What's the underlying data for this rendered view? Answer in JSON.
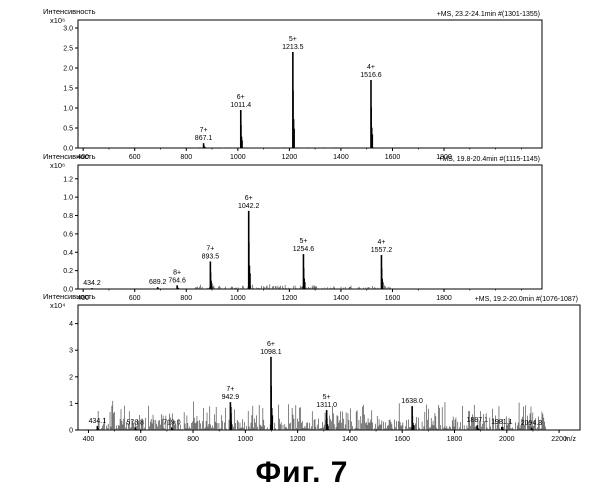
{
  "figure_caption": "Фиг.  7",
  "chart_data": [
    {
      "type": "line",
      "ylabel": "Интенсивность",
      "y_exponent_label": "x10⁶",
      "header": "+MS, 23.2-24.1min #(1301-1355)",
      "xlim": [
        380,
        2180
      ],
      "ylim": [
        0,
        3.2
      ],
      "xticks": [
        400,
        600,
        800,
        1000,
        1200,
        1400,
        1600,
        1800
      ],
      "yticks": [
        "0.0",
        "0.5",
        "1.0",
        "1.5",
        "2.0",
        "2.5",
        "3.0"
      ],
      "ytick_values": [
        0,
        0.5,
        1.0,
        1.5,
        2.0,
        2.5,
        3.0
      ],
      "peaks": [
        {
          "charge": "7+",
          "mz": "867.1",
          "x": 867.1,
          "y": 0.12
        },
        {
          "charge": "6+",
          "mz": "1011.4",
          "x": 1011.4,
          "y": 0.95
        },
        {
          "charge": "5+",
          "mz": "1213.5",
          "x": 1213.5,
          "y": 2.4
        },
        {
          "charge": "4+",
          "mz": "1516.6",
          "x": 1516.6,
          "y": 1.7
        }
      ]
    },
    {
      "type": "line",
      "ylabel": "Интенсивность",
      "y_exponent_label": "x10⁶",
      "header": "+MS, 19.8-20.4min #(1115-1145)",
      "xlim": [
        380,
        2180
      ],
      "ylim": [
        0,
        1.35
      ],
      "xticks": [
        400,
        600,
        800,
        1000,
        1200,
        1400,
        1600,
        1800
      ],
      "yticks": [
        "0.0",
        "0.2",
        "0.4",
        "0.6",
        "0.8",
        "1.0",
        "1.2"
      ],
      "ytick_values": [
        0,
        0.2,
        0.4,
        0.6,
        0.8,
        1.0,
        1.2
      ],
      "peaks": [
        {
          "charge": "",
          "mz": "434.2",
          "x": 434.2,
          "y": 0.01
        },
        {
          "charge": "",
          "mz": "689.2",
          "x": 689.2,
          "y": 0.02
        },
        {
          "charge": "8+",
          "mz": "764.6",
          "x": 764.6,
          "y": 0.04
        },
        {
          "charge": "7+",
          "mz": "893.5",
          "x": 893.5,
          "y": 0.3
        },
        {
          "charge": "6+",
          "mz": "1042.2",
          "x": 1042.2,
          "y": 0.85
        },
        {
          "charge": "5+",
          "mz": "1254.6",
          "x": 1254.6,
          "y": 0.38
        },
        {
          "charge": "4+",
          "mz": "1557.2",
          "x": 1557.2,
          "y": 0.37
        }
      ]
    },
    {
      "type": "line",
      "ylabel": "Интенсивность",
      "y_exponent_label": "x10⁴",
      "header": "+MS, 19.2-20.0min #(1076-1087)",
      "xlim": [
        360,
        2280
      ],
      "ylim": [
        0,
        4.7
      ],
      "xticks": [
        400,
        600,
        800,
        1000,
        1200,
        1400,
        1600,
        1800,
        2000,
        2200
      ],
      "yticks": [
        "0",
        "1",
        "2",
        "3",
        "4"
      ],
      "ytick_values": [
        0,
        1,
        2,
        3,
        4
      ],
      "xlabel": "m/z",
      "peaks": [
        {
          "charge": "",
          "mz": "434.1",
          "x": 434.1,
          "y": 0.15
        },
        {
          "charge": "",
          "mz": "578.8",
          "x": 578.8,
          "y": 0.1
        },
        {
          "charge": "",
          "mz": "719.0",
          "x": 719.0,
          "y": 0.1
        },
        {
          "charge": "7+",
          "mz": "942.9",
          "x": 942.9,
          "y": 1.05
        },
        {
          "charge": "6+",
          "mz": "1098.1",
          "x": 1098.1,
          "y": 2.75
        },
        {
          "charge": "5+",
          "mz": "1311.0",
          "x": 1311.0,
          "y": 0.75
        },
        {
          "charge": "",
          "mz": "1638.0",
          "x": 1638.0,
          "y": 0.9
        },
        {
          "charge": "",
          "mz": "1887.1",
          "x": 1887.1,
          "y": 0.18
        },
        {
          "charge": "",
          "mz": "1981.1",
          "x": 1981.1,
          "y": 0.12
        },
        {
          "charge": "",
          "mz": "2094.3",
          "x": 2094.3,
          "y": 0.08
        }
      ]
    }
  ]
}
